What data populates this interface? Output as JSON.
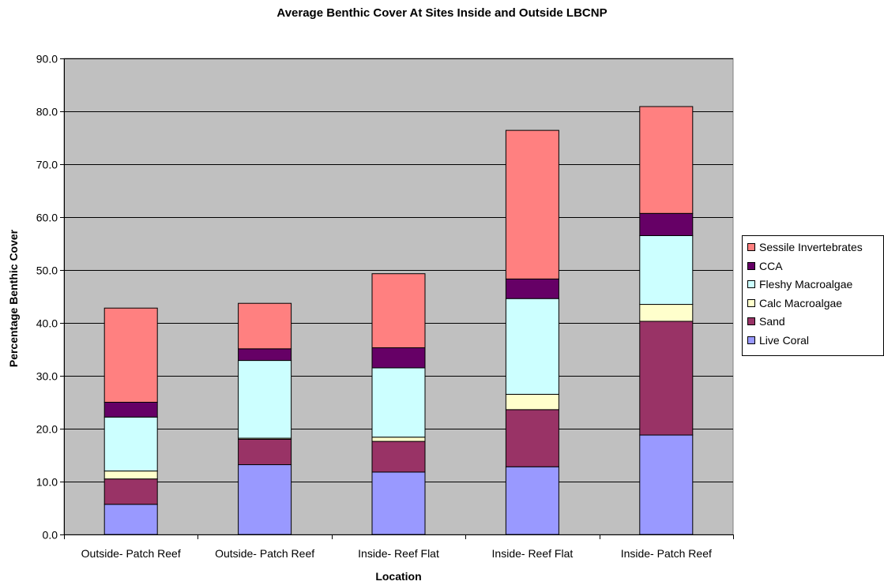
{
  "chart_data": {
    "type": "bar",
    "stacked": true,
    "title": "Average Benthic Cover At Sites Inside and Outside LBCNP",
    "xlabel": "Location",
    "ylabel": "Percentage Benthic Cover",
    "ylim": [
      0,
      90
    ],
    "yticks": [
      "0.0",
      "10.0",
      "20.0",
      "30.0",
      "40.0",
      "50.0",
      "60.0",
      "70.0",
      "80.0",
      "90.0"
    ],
    "grid": true,
    "legend_position": "right",
    "plot_background": "#c0c0c0",
    "categories": [
      "Outside- Patch Reef",
      "Outside- Patch Reef",
      "Inside- Reef Flat",
      "Inside- Reef Flat",
      "Inside- Patch Reef"
    ],
    "series": [
      {
        "name": "Live Coral",
        "color": "#9999ff",
        "values": [
          5.7,
          13.2,
          11.8,
          12.8,
          18.8
        ]
      },
      {
        "name": "Sand",
        "color": "#993366",
        "values": [
          4.8,
          4.8,
          5.8,
          10.8,
          21.5
        ]
      },
      {
        "name": "Calc Macroalgae",
        "color": "#ffffcc",
        "values": [
          1.5,
          0.2,
          0.8,
          2.9,
          3.2
        ]
      },
      {
        "name": "Fleshy Macroalgae",
        "color": "#ccffff",
        "values": [
          10.2,
          14.7,
          13.1,
          18.1,
          13.0
        ]
      },
      {
        "name": "CCA",
        "color": "#660066",
        "values": [
          2.8,
          2.2,
          3.8,
          3.7,
          4.2
        ]
      },
      {
        "name": "Sessile Invertebrates",
        "color": "#ff8080",
        "values": [
          17.8,
          8.6,
          14.0,
          28.1,
          20.2
        ]
      }
    ]
  }
}
